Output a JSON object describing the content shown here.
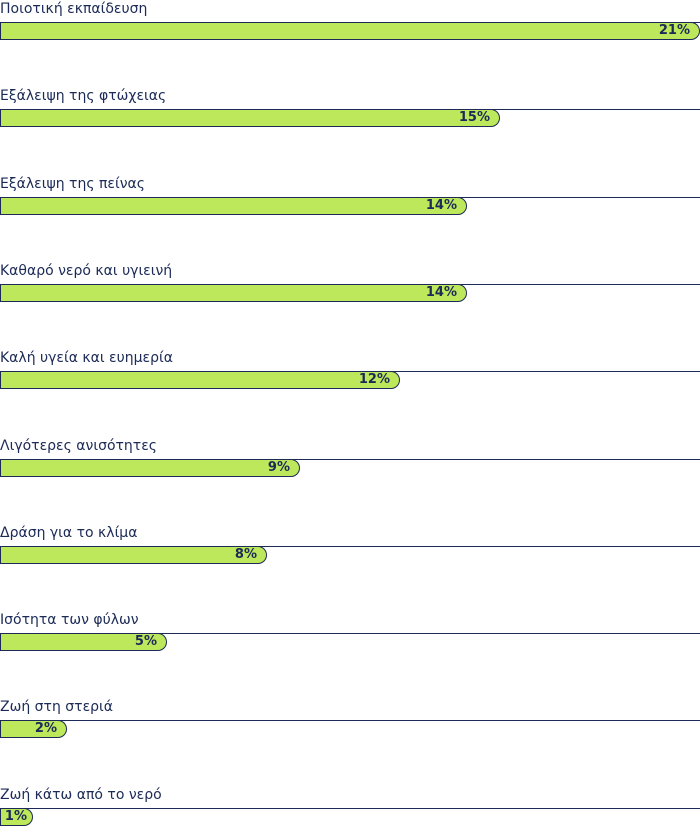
{
  "chart_data": {
    "type": "bar",
    "orientation": "horizontal",
    "title": "",
    "xlabel": "",
    "ylabel": "",
    "xlim": [
      0,
      21
    ],
    "categories": [
      "Ποιοτική εκπαίδευση",
      "Εξάλειψη της φτώχειας",
      "Εξάλειψη της πείνας",
      "Καθαρό νερό και υγιεινή",
      "Καλή υγεία και ευημερία",
      "Λιγότερες ανισότητες",
      "Δράση για το κλίμα",
      "Ισότητα των φύλων",
      "Ζωή στη στεριά",
      "Ζωή κάτω από το νερό"
    ],
    "values": [
      21,
      15,
      14,
      14,
      12,
      9,
      8,
      5,
      2,
      1
    ],
    "value_labels": [
      "21%",
      "15%",
      "14%",
      "14%",
      "12%",
      "9%",
      "8%",
      "5%",
      "2%",
      "1%"
    ],
    "colors": {
      "bar": "#bde85b",
      "outline": "#1b2a56",
      "text": "#1b2a56"
    }
  }
}
